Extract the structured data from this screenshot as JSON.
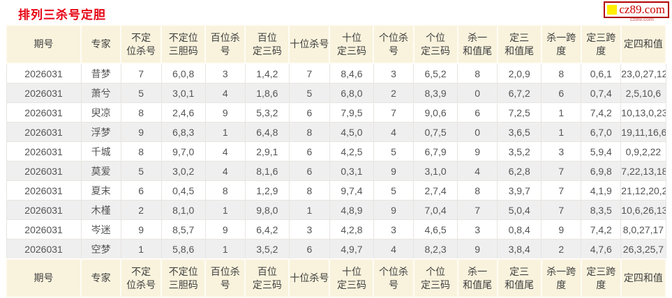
{
  "page": {
    "title": "排列三杀号定胆",
    "logo_text": "cz89.com",
    "watermark_small": "cz89.com"
  },
  "colors": {
    "title_red": "#e60012",
    "logo_border_red": "#b20000",
    "logo_text_red": "#cc0000",
    "logo_square_yellow": "#ffee00",
    "header_bg_cream": "#f9f3dd",
    "row_alt_gray": "#efefef",
    "cell_text": "#545454"
  },
  "table": {
    "headers": [
      {
        "id": "period",
        "lines": [
          "期号"
        ]
      },
      {
        "id": "expert",
        "lines": [
          "专家"
        ]
      },
      {
        "id": "nonpos-kill",
        "lines": [
          "不定",
          "位杀号"
        ]
      },
      {
        "id": "nonpos-three-dan",
        "lines": [
          "不定位",
          "三胆码"
        ]
      },
      {
        "id": "hundreds-kill",
        "lines": [
          "百位杀号"
        ]
      },
      {
        "id": "hundreds-three",
        "lines": [
          "百位",
          "定三码"
        ]
      },
      {
        "id": "tens-kill",
        "lines": [
          "十位杀号"
        ]
      },
      {
        "id": "tens-three",
        "lines": [
          "十位",
          "定三码"
        ]
      },
      {
        "id": "units-kill",
        "lines": [
          "个位杀号"
        ]
      },
      {
        "id": "units-three",
        "lines": [
          "个位",
          "定三码"
        ]
      },
      {
        "id": "kill-one-sum-tail",
        "lines": [
          "杀一",
          "和值尾"
        ]
      },
      {
        "id": "fix-three-sum-tail",
        "lines": [
          "定三",
          "和值尾"
        ]
      },
      {
        "id": "kill-one-span",
        "lines": [
          "杀一跨度"
        ]
      },
      {
        "id": "fix-three-span",
        "lines": [
          "定三跨度"
        ]
      },
      {
        "id": "fix-four-sum",
        "lines": [
          "定四和值"
        ]
      }
    ],
    "rows": [
      [
        "2026031",
        "昔梦",
        "7",
        "6,0,8",
        "3",
        "1,4,2",
        "7",
        "8,4,6",
        "3",
        "6,5,2",
        "8",
        "2,0,9",
        "8",
        "0,6,1",
        "23,0,27,12"
      ],
      [
        "2026031",
        "萧兮",
        "5",
        "3,0,1",
        "4",
        "1,8,6",
        "5",
        "6,8,0",
        "2",
        "8,3,9",
        "0",
        "6,7,2",
        "6",
        "0,7,4",
        "2,5,10,6"
      ],
      [
        "2026031",
        "臾凉",
        "8",
        "2,4,6",
        "9",
        "5,3,2",
        "6",
        "7,9,5",
        "7",
        "9,0,6",
        "6",
        "7,2,5",
        "1",
        "7,4,2",
        "10,13,0,23"
      ],
      [
        "2026031",
        "浮梦",
        "9",
        "6,8,3",
        "1",
        "6,4,8",
        "8",
        "4,5,0",
        "4",
        "0,7,5",
        "0",
        "3,6,5",
        "1",
        "6,7,0",
        "19,11,16,6"
      ],
      [
        "2026031",
        "千城",
        "8",
        "9,7,0",
        "4",
        "2,9,1",
        "6",
        "4,2,5",
        "5",
        "6,7,9",
        "9",
        "3,5,2",
        "3",
        "5,9,4",
        "0,9,2,22"
      ],
      [
        "2026031",
        "莫爱",
        "5",
        "3,0,2",
        "4",
        "8,1,6",
        "6",
        "0,3,1",
        "9",
        "3,1,0",
        "4",
        "6,2,8",
        "7",
        "6,9,8",
        "7,22,13,18"
      ],
      [
        "2026031",
        "夏末",
        "6",
        "0,4,5",
        "8",
        "1,2,9",
        "8",
        "9,7,4",
        "5",
        "2,7,4",
        "8",
        "3,9,7",
        "7",
        "4,1,9",
        "21,12,20,2"
      ],
      [
        "2026031",
        "木槿",
        "2",
        "8,1,0",
        "1",
        "9,8,0",
        "1",
        "4,8,9",
        "9",
        "7,0,4",
        "7",
        "5,0,4",
        "7",
        "8,3,5",
        "10,6,26,13"
      ],
      [
        "2026031",
        "岑迷",
        "9",
        "8,5,7",
        "9",
        "6,4,2",
        "3",
        "4,2,8",
        "3",
        "4,6,5",
        "3",
        "0,8,4",
        "9",
        "7,4,2",
        "8,0,27,17"
      ],
      [
        "2026031",
        "空梦",
        "1",
        "5,8,6",
        "1",
        "3,5,2",
        "6",
        "4,9,7",
        "4",
        "8,2,3",
        "9",
        "3,8,4",
        "2",
        "4,7,6",
        "26,3,25,7"
      ]
    ]
  }
}
